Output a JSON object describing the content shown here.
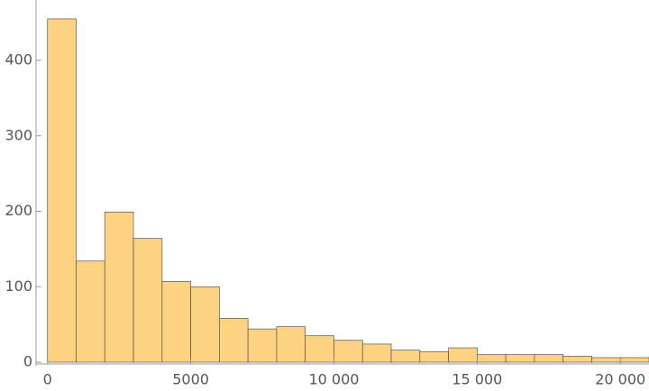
{
  "chart_data": {
    "type": "histogram",
    "bins": [
      0,
      1000,
      2000,
      3000,
      4000,
      5000,
      6000,
      7000,
      8000,
      9000,
      10000,
      11000,
      12000,
      13000,
      14000,
      15000,
      16000,
      17000,
      18000,
      19000,
      20000,
      21000
    ],
    "values": [
      455,
      134,
      199,
      164,
      107,
      100,
      58,
      44,
      47,
      35,
      29,
      24,
      16,
      14,
      19,
      10,
      10,
      10,
      8,
      6,
      6
    ],
    "color": "#fdd280",
    "xlim": [
      -400,
      21000
    ],
    "ylim": [
      0,
      480
    ],
    "xticks": [
      0,
      5000,
      {
        "value": 10000,
        "label": "10 000"
      },
      {
        "value": 15000,
        "label": "15 000"
      },
      {
        "value": 20000,
        "label": "20 000"
      }
    ],
    "yticks": [
      0,
      100,
      200,
      300,
      400
    ]
  }
}
